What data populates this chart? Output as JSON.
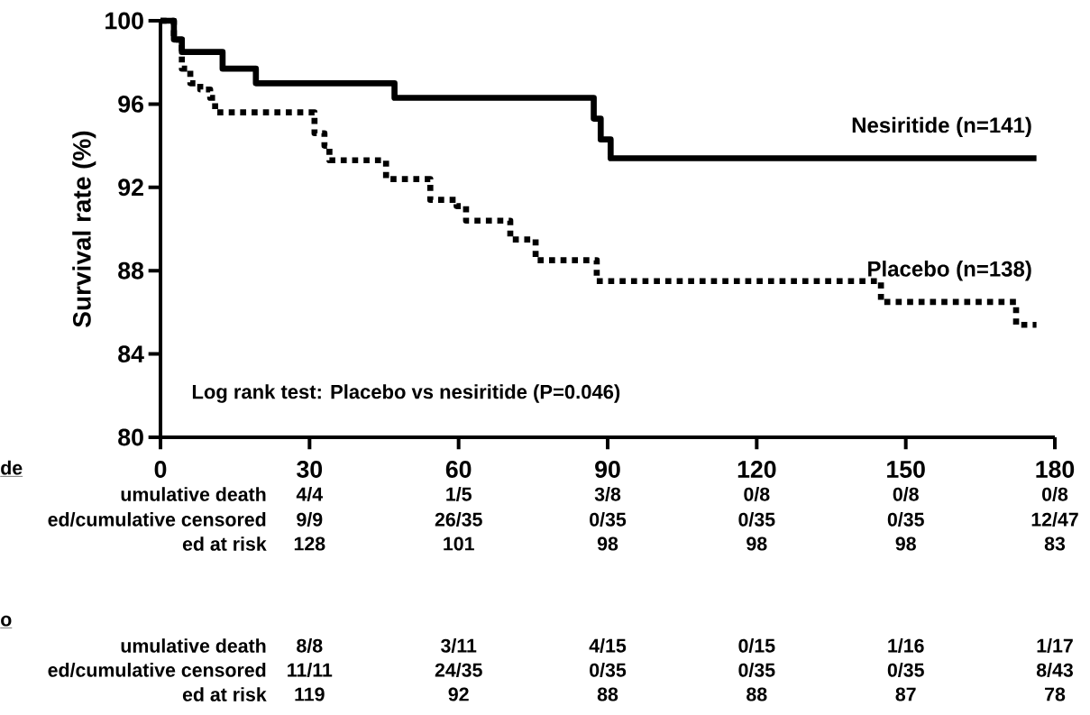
{
  "chart_data": {
    "type": "step",
    "ylabel": "Survival rate (%)",
    "xlim": [
      0,
      180
    ],
    "xticks": [
      0,
      30,
      60,
      90,
      120,
      150,
      180
    ],
    "ylim": [
      80,
      100
    ],
    "yticks": [
      80,
      84,
      88,
      92,
      96,
      100
    ],
    "series": [
      {
        "name": "Nesiritide (n=141)",
        "color": "#000000",
        "line_style": "solid",
        "x": [
          0,
          2.7,
          4.3,
          12.5,
          19.2,
          47.1,
          87.2,
          88.6,
          90.6,
          176.3
        ],
        "values": [
          100,
          99.1,
          98.5,
          97.7,
          97.0,
          96.3,
          95.3,
          94.3,
          93.4,
          93.4
        ]
      },
      {
        "name": "Placebo (n=138)",
        "color": "#000000",
        "line_style": "dotted",
        "x": [
          0,
          2.7,
          4.3,
          6,
          8,
          10,
          11,
          29.7,
          31,
          33,
          34,
          45.4,
          54.3,
          59.6,
          61.5,
          70.4,
          75.5,
          87.8,
          145,
          172.2,
          176.3
        ],
        "values": [
          100,
          99.1,
          97.7,
          97.0,
          96.7,
          96.3,
          95.6,
          95.6,
          94.6,
          94.0,
          93.3,
          92.4,
          91.4,
          91.1,
          90.4,
          89.5,
          88.5,
          87.5,
          86.5,
          85.4,
          85.4
        ]
      }
    ],
    "annotations": [
      "Log rank test:  Placebo vs nesiritide (P=0.046)",
      "de",
      "umulative death",
      "4/4",
      "1/5",
      "3/8",
      "0/8",
      "0/8",
      "0/8",
      "ed/cumulative censored",
      "9/9",
      "26/35",
      "0/35",
      "0/35",
      "0/35",
      "12/47",
      "ed at risk",
      "128",
      "101",
      "98",
      "98",
      "98",
      "83",
      "o",
      "umulative death",
      "8/8",
      "3/11",
      "4/15",
      "0/15",
      "1/16",
      "1/17",
      "ed/cumulative censored",
      "11/11",
      "24/35",
      "0/35",
      "0/35",
      "0/35",
      "8/43",
      "ed at risk",
      "119",
      "92",
      "88",
      "88",
      "87",
      "78"
    ]
  }
}
